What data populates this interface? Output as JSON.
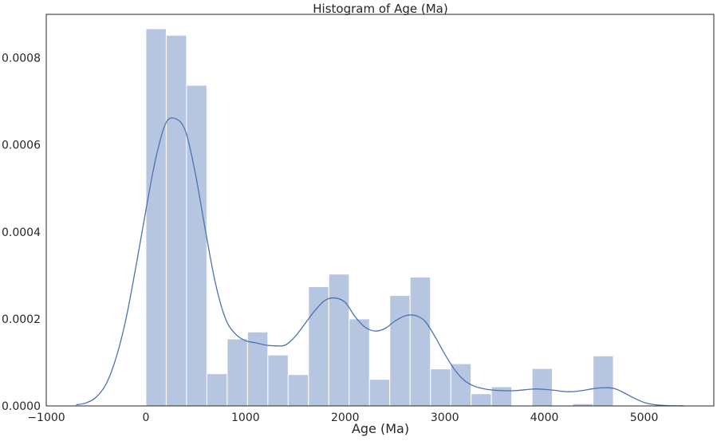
{
  "chart_data": {
    "type": "bar",
    "title": "Histogram of Age (Ma)",
    "xlabel": "Age (Ma)",
    "ylabel": "",
    "xlim": [
      -1000,
      5700
    ],
    "ylim": [
      0,
      0.0009
    ],
    "grid": false,
    "bin_width": 204,
    "x_ticks": [
      {
        "value": -1000,
        "label": "−1000"
      },
      {
        "value": 0,
        "label": "0"
      },
      {
        "value": 1000,
        "label": "1000"
      },
      {
        "value": 2000,
        "label": "2000"
      },
      {
        "value": 3000,
        "label": "3000"
      },
      {
        "value": 4000,
        "label": "4000"
      },
      {
        "value": 5000,
        "label": "5000"
      }
    ],
    "y_ticks": [
      {
        "value": 0,
        "label": "0.0000"
      },
      {
        "value": 0.0002,
        "label": "0.0002"
      },
      {
        "value": 0.0004,
        "label": "0.0004"
      },
      {
        "value": 0.0006,
        "label": "0.0006"
      },
      {
        "value": 0.0008,
        "label": "0.0008"
      }
    ],
    "bins": [
      {
        "x": 0,
        "density": 0.000867
      },
      {
        "x": 204,
        "density": 0.000852
      },
      {
        "x": 408,
        "density": 0.000737
      },
      {
        "x": 612,
        "density": 7.4e-05
      },
      {
        "x": 816,
        "density": 0.000154
      },
      {
        "x": 1020,
        "density": 0.00017
      },
      {
        "x": 1224,
        "density": 0.000117
      },
      {
        "x": 1428,
        "density": 7.2e-05
      },
      {
        "x": 1632,
        "density": 0.000274
      },
      {
        "x": 1836,
        "density": 0.000303
      },
      {
        "x": 2040,
        "density": 0.0002
      },
      {
        "x": 2244,
        "density": 6.1e-05
      },
      {
        "x": 2448,
        "density": 0.000254
      },
      {
        "x": 2652,
        "density": 0.000296
      },
      {
        "x": 2856,
        "density": 8.5e-05
      },
      {
        "x": 3060,
        "density": 9.7e-05
      },
      {
        "x": 3264,
        "density": 2.8e-05
      },
      {
        "x": 3468,
        "density": 4.4e-05
      },
      {
        "x": 3672,
        "density": 0
      },
      {
        "x": 3876,
        "density": 8.6e-05
      },
      {
        "x": 4080,
        "density": 0
      },
      {
        "x": 4284,
        "density": 5e-06
      },
      {
        "x": 4488,
        "density": 0.000115
      }
    ],
    "kde": {
      "x": [
        -700,
        -600,
        -500,
        -400,
        -300,
        -200,
        -100,
        0,
        100,
        200,
        300,
        400,
        500,
        600,
        700,
        800,
        900,
        1000,
        1100,
        1200,
        1300,
        1400,
        1500,
        1600,
        1700,
        1800,
        1900,
        2000,
        2100,
        2200,
        2300,
        2400,
        2500,
        2600,
        2700,
        2800,
        2900,
        3000,
        3100,
        3200,
        3300,
        3400,
        3500,
        3600,
        3700,
        3800,
        3900,
        4000,
        4100,
        4200,
        4300,
        4400,
        4500,
        4600,
        4700,
        4800,
        4900,
        5000,
        5100,
        5200,
        5300,
        5400
      ],
      "y": [
        2.5e-06,
        7e-06,
        2e-05,
        5e-05,
        0.00011,
        0.0002,
        0.00032,
        0.00045,
        0.00057,
        0.00065,
        0.00066,
        0.00063,
        0.00053,
        0.0004,
        0.00028,
        0.0002,
        0.000165,
        0.00015,
        0.000145,
        0.00014,
        0.000138,
        0.00014,
        0.00016,
        0.00019,
        0.00022,
        0.000243,
        0.000248,
        0.000238,
        0.000205,
        0.000181,
        0.000172,
        0.000178,
        0.000195,
        0.000207,
        0.000208,
        0.000195,
        0.00016,
        0.000119,
        8.3e-05,
        5.8e-05,
        4.5e-05,
        3.9e-05,
        3.6e-05,
        3.5e-05,
        3.5e-05,
        3.7e-05,
        3.9e-05,
        3.8e-05,
        3.6e-05,
        3.3e-05,
        3.3e-05,
        3.6e-05,
        4e-05,
        4.2e-05,
        4e-05,
        3e-05,
        1.8e-05,
        8e-06,
        3e-06,
        1.2e-06,
        4e-07,
        1e-07
      ]
    },
    "colors": {
      "bar_fill": "#b6c6e0",
      "bar_edge": "#ffffff",
      "kde_line": "#4c72b0",
      "axis": "#262626"
    }
  }
}
